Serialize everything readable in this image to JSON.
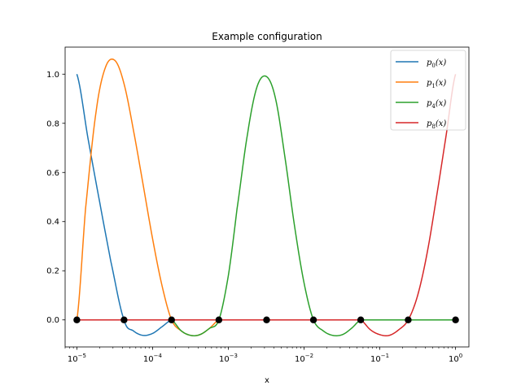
{
  "chart_data": {
    "type": "line",
    "title": "Example configuration",
    "xlabel": "x",
    "ylabel": "",
    "xscale": "log",
    "xlim": [
      7e-06,
      1.5
    ],
    "ylim": [
      -0.11,
      1.11
    ],
    "xticks": [
      {
        "base": "10",
        "exp": "−5",
        "value": 1e-05
      },
      {
        "base": "10",
        "exp": "−4",
        "value": 0.0001
      },
      {
        "base": "10",
        "exp": "−3",
        "value": 0.001
      },
      {
        "base": "10",
        "exp": "−2",
        "value": 0.01
      },
      {
        "base": "10",
        "exp": "−1",
        "value": 0.1
      },
      {
        "base": "10",
        "exp": "0",
        "value": 1
      }
    ],
    "yticks": [
      "0.0",
      "0.2",
      "0.4",
      "0.6",
      "0.8",
      "1.0"
    ],
    "legend_location": "top-right",
    "series": [
      {
        "name": "p",
        "subscript": "0",
        "suffix": "(x)",
        "color": "#1f77b4",
        "nodes": [
          1e-05,
          4.2e-05,
          0.000178
        ],
        "x": [
          1e-05,
          1.4e-05,
          2e-05,
          2.8e-05,
          4.2e-05,
          5.6e-05,
          7.5e-05,
          0.0001,
          0.00013,
          0.000178,
          0.00025,
          0.001,
          1
        ],
        "y": [
          1.0,
          0.74,
          0.48,
          0.24,
          0.0,
          -0.045,
          -0.063,
          -0.055,
          -0.03,
          0.0,
          0.0,
          0.0,
          0.0
        ]
      },
      {
        "name": "p",
        "subscript": "1",
        "suffix": "(x)",
        "color": "#ff7f0e",
        "nodes": [
          1e-05,
          4.2e-05,
          0.000178,
          0.00075
        ],
        "x": [
          1e-05,
          1.3e-05,
          1.8e-05,
          2.4e-05,
          3.2e-05,
          4.2e-05,
          5.6e-05,
          7.5e-05,
          0.0001,
          0.000133,
          0.000178,
          0.00024,
          0.00032,
          0.00042,
          0.00056,
          0.00075,
          0.001,
          1
        ],
        "y": [
          0.0,
          0.45,
          0.85,
          1.03,
          1.055,
          0.96,
          0.77,
          0.55,
          0.33,
          0.14,
          0.0,
          -0.045,
          -0.063,
          -0.06,
          -0.035,
          0.0,
          0.0,
          0.0
        ]
      },
      {
        "name": "p",
        "subscript": "4",
        "suffix": "(x)",
        "color": "#2ca02c",
        "nodes": [
          0.000178,
          0.00075,
          0.0032,
          0.0133,
          0.056
        ],
        "x": [
          1e-05,
          0.000178,
          0.00024,
          0.00032,
          0.00042,
          0.00056,
          0.00075,
          0.001,
          0.0013,
          0.0018,
          0.0024,
          0.0032,
          0.0042,
          0.0056,
          0.0075,
          0.01,
          0.0133,
          0.018,
          0.024,
          0.032,
          0.042,
          0.056,
          0.075,
          1
        ],
        "y": [
          0.0,
          0.0,
          -0.045,
          -0.063,
          -0.06,
          -0.035,
          0.0,
          0.18,
          0.45,
          0.76,
          0.95,
          0.99,
          0.9,
          0.66,
          0.38,
          0.15,
          0.0,
          -0.045,
          -0.063,
          -0.06,
          -0.035,
          0.0,
          0.0,
          0.0
        ]
      },
      {
        "name": "p",
        "subscript": "8",
        "suffix": "(x)",
        "color": "#d62728",
        "nodes": [
          0.056,
          0.237,
          1.0
        ],
        "x": [
          1e-05,
          0.056,
          0.075,
          0.1,
          0.133,
          0.178,
          0.237,
          0.316,
          0.42,
          0.56,
          0.75,
          1.0
        ],
        "y": [
          0.0,
          0.0,
          -0.04,
          -0.06,
          -0.063,
          -0.04,
          0.0,
          0.1,
          0.27,
          0.5,
          0.75,
          1.0
        ]
      }
    ],
    "markers": {
      "color": "#000000",
      "x": [
        1e-05,
        4.2e-05,
        0.000178,
        0.00075,
        0.0032,
        0.0133,
        0.056,
        0.237,
        1.0
      ],
      "y": [
        0,
        0,
        0,
        0,
        0,
        0,
        0,
        0,
        0
      ]
    }
  }
}
